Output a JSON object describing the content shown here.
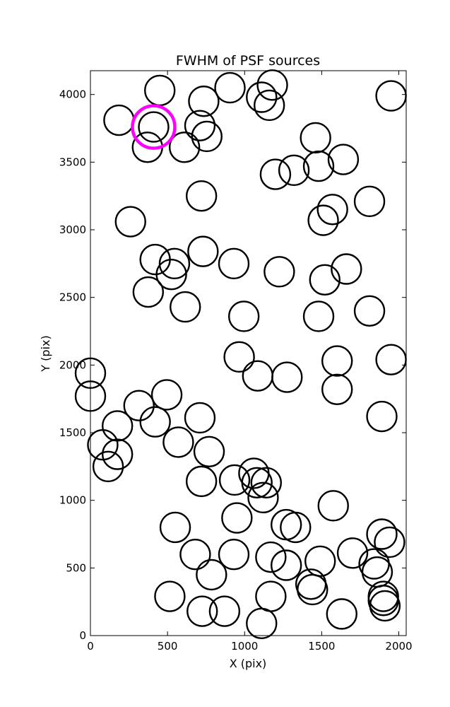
{
  "chart_data": {
    "type": "scatter",
    "title": "FWHM of PSF sources",
    "xlabel": "X (pix)",
    "ylabel": "Y (pix)",
    "xlim": [
      0,
      2048
    ],
    "ylim": [
      0,
      4176
    ],
    "xticks": [
      0,
      500,
      1000,
      1500,
      2000
    ],
    "yticks": [
      0,
      500,
      1000,
      1500,
      2000,
      2500,
      3000,
      3500,
      4000
    ],
    "grid": false,
    "marker": "open-circle",
    "marker_color": "#000000",
    "highlight_color": "#ff00ff",
    "points": [
      [
        450,
        4030
      ],
      [
        735,
        3950
      ],
      [
        905,
        4050
      ],
      [
        1110,
        3980
      ],
      [
        1180,
        4070
      ],
      [
        1160,
        3920
      ],
      [
        1950,
        3990
      ],
      [
        185,
        3810
      ],
      [
        410,
        3760
      ],
      [
        710,
        3770
      ],
      [
        755,
        3690
      ],
      [
        370,
        3610
      ],
      [
        610,
        3610
      ],
      [
        1460,
        3680
      ],
      [
        1640,
        3520
      ],
      [
        1480,
        3470
      ],
      [
        1320,
        3440
      ],
      [
        1200,
        3410
      ],
      [
        720,
        3250
      ],
      [
        1570,
        3150
      ],
      [
        1510,
        3070
      ],
      [
        1810,
        3210
      ],
      [
        260,
        3060
      ],
      [
        730,
        2840
      ],
      [
        420,
        2780
      ],
      [
        545,
        2750
      ],
      [
        525,
        2670
      ],
      [
        930,
        2750
      ],
      [
        1225,
        2690
      ],
      [
        1660,
        2710
      ],
      [
        1520,
        2630
      ],
      [
        375,
        2540
      ],
      [
        615,
        2430
      ],
      [
        995,
        2360
      ],
      [
        1480,
        2360
      ],
      [
        1810,
        2400
      ],
      [
        0,
        1940
      ],
      [
        965,
        2060
      ],
      [
        1085,
        1920
      ],
      [
        1275,
        1910
      ],
      [
        1600,
        2030
      ],
      [
        1950,
        2040
      ],
      [
        0,
        1770
      ],
      [
        495,
        1780
      ],
      [
        315,
        1700
      ],
      [
        710,
        1610
      ],
      [
        420,
        1580
      ],
      [
        1890,
        1620
      ],
      [
        1600,
        1820
      ],
      [
        175,
        1550
      ],
      [
        80,
        1410
      ],
      [
        175,
        1340
      ],
      [
        115,
        1250
      ],
      [
        570,
        1430
      ],
      [
        770,
        1360
      ],
      [
        720,
        1140
      ],
      [
        935,
        1150
      ],
      [
        1060,
        1200
      ],
      [
        1080,
        1130
      ],
      [
        1140,
        1130
      ],
      [
        1120,
        1020
      ],
      [
        1575,
        960
      ],
      [
        950,
        870
      ],
      [
        550,
        800
      ],
      [
        1270,
        820
      ],
      [
        1330,
        800
      ],
      [
        1890,
        750
      ],
      [
        1940,
        690
      ],
      [
        680,
        600
      ],
      [
        930,
        600
      ],
      [
        1170,
        580
      ],
      [
        1270,
        520
      ],
      [
        1490,
        550
      ],
      [
        1700,
        610
      ],
      [
        1840,
        530
      ],
      [
        1860,
        470
      ],
      [
        785,
        450
      ],
      [
        1430,
        380
      ],
      [
        1440,
        340
      ],
      [
        515,
        290
      ],
      [
        1170,
        290
      ],
      [
        725,
        180
      ],
      [
        870,
        180
      ],
      [
        1110,
        90
      ],
      [
        1630,
        160
      ],
      [
        1900,
        290
      ],
      [
        1900,
        260
      ],
      [
        1910,
        220
      ]
    ],
    "highlight_points": [
      [
        410,
        3760
      ]
    ]
  }
}
